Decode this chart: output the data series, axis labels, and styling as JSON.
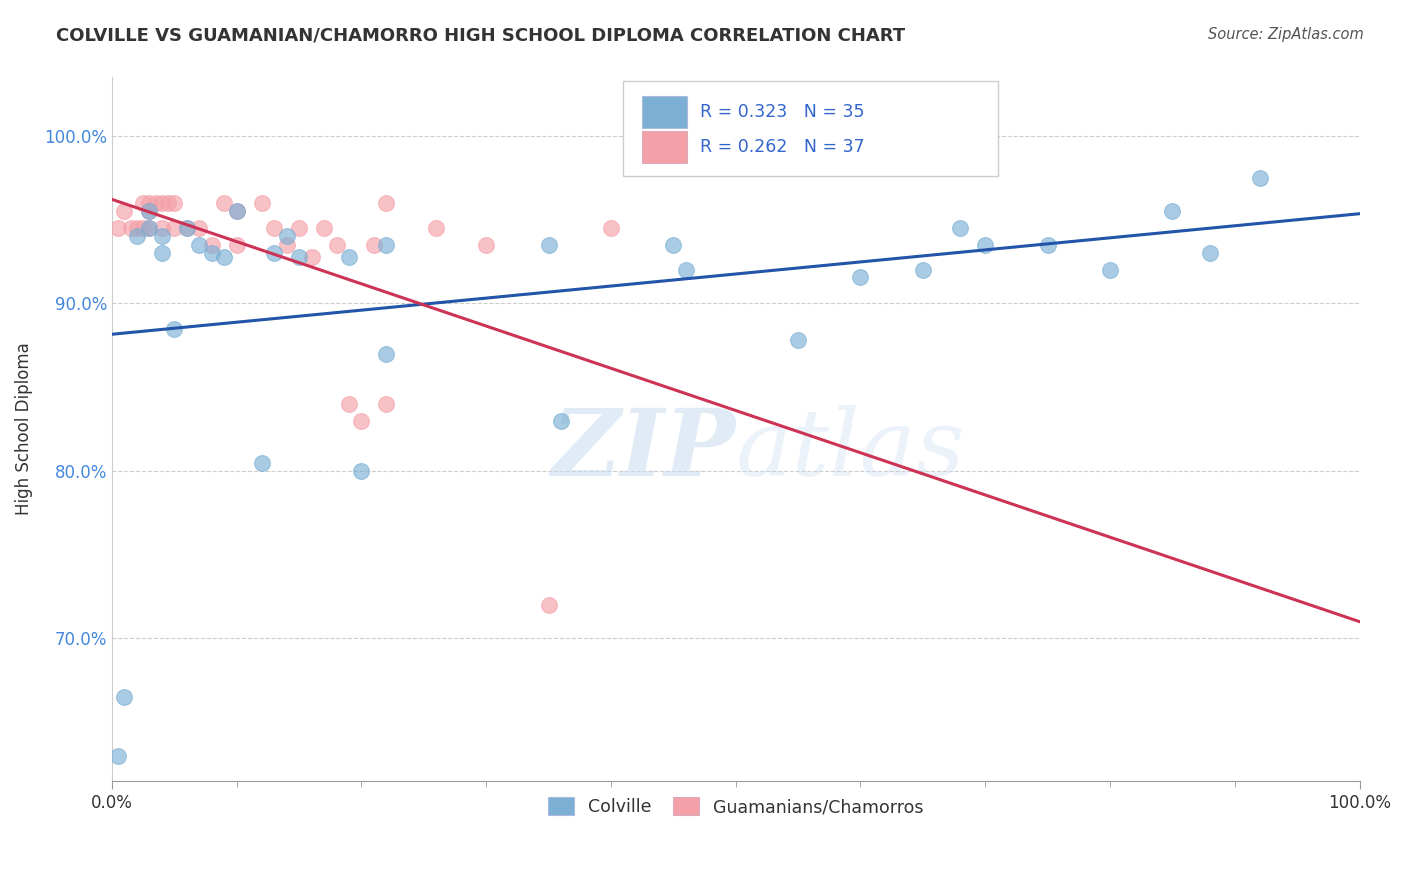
{
  "title": "COLVILLE VS GUAMANIAN/CHAMORRO HIGH SCHOOL DIPLOMA CORRELATION CHART",
  "source": "Source: ZipAtlas.com",
  "ylabel": "High School Diploma",
  "xlim": [
    0.0,
    1.0
  ],
  "ylim": [
    0.615,
    1.035
  ],
  "yticks": [
    0.7,
    0.8,
    0.9,
    1.0
  ],
  "ytick_labels": [
    "70.0%",
    "80.0%",
    "90.0%",
    "100.0%"
  ],
  "colville_R": 0.323,
  "colville_N": 35,
  "guamanian_R": 0.262,
  "guamanian_N": 37,
  "legend_label_blue": "Colville",
  "legend_label_pink": "Guamanians/Chamorros",
  "colville_color": "#7BAFD4",
  "guamanian_color": "#F4A0A8",
  "line_blue": "#2255AA",
  "line_pink": "#CC3355",
  "colville_x": [
    0.005,
    0.01,
    0.02,
    0.03,
    0.03,
    0.04,
    0.04,
    0.05,
    0.06,
    0.07,
    0.08,
    0.09,
    0.13,
    0.14,
    0.15,
    0.19,
    0.2,
    0.22,
    0.22,
    0.35,
    0.36,
    0.45,
    0.46,
    0.55,
    0.6,
    0.65,
    0.68,
    0.7,
    0.75,
    0.8,
    0.85,
    0.88,
    0.92,
    0.1,
    0.12
  ],
  "colville_y": [
    0.63,
    0.665,
    0.94,
    0.945,
    0.955,
    0.93,
    0.94,
    0.885,
    0.945,
    0.935,
    0.93,
    0.928,
    0.93,
    0.94,
    0.928,
    0.928,
    0.8,
    0.935,
    0.87,
    0.935,
    0.83,
    0.935,
    0.92,
    0.878,
    0.916,
    0.92,
    0.945,
    0.935,
    0.935,
    0.92,
    0.955,
    0.93,
    0.975,
    0.955,
    0.805
  ],
  "guamanian_x": [
    0.005,
    0.01,
    0.015,
    0.02,
    0.025,
    0.025,
    0.03,
    0.03,
    0.03,
    0.035,
    0.04,
    0.04,
    0.045,
    0.05,
    0.05,
    0.06,
    0.07,
    0.08,
    0.09,
    0.1,
    0.12,
    0.13,
    0.14,
    0.15,
    0.16,
    0.17,
    0.19,
    0.21,
    0.22,
    0.22,
    0.26,
    0.3,
    0.35,
    0.4,
    0.1,
    0.18,
    0.2
  ],
  "guamanian_y": [
    0.945,
    0.955,
    0.945,
    0.945,
    0.945,
    0.96,
    0.945,
    0.96,
    0.955,
    0.96,
    0.945,
    0.96,
    0.96,
    0.945,
    0.96,
    0.945,
    0.945,
    0.935,
    0.96,
    0.935,
    0.96,
    0.945,
    0.935,
    0.945,
    0.928,
    0.945,
    0.84,
    0.935,
    0.84,
    0.96,
    0.945,
    0.935,
    0.72,
    0.945,
    0.955,
    0.935,
    0.83
  ]
}
